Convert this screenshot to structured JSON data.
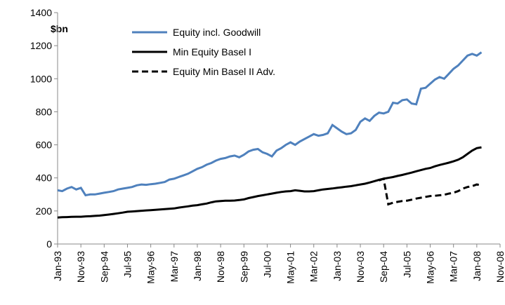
{
  "chart_data": {
    "type": "line",
    "y_label": "$bn",
    "categories": [
      "Jan-93",
      null,
      null,
      null,
      null,
      "Nov-93",
      null,
      null,
      null,
      null,
      "Sep-94",
      null,
      null,
      null,
      null,
      "Jul-95",
      null,
      null,
      null,
      null,
      "May-96",
      null,
      null,
      null,
      null,
      "Mar-97",
      null,
      null,
      null,
      null,
      "Jan-98",
      null,
      null,
      null,
      null,
      "Nov-98",
      null,
      null,
      null,
      null,
      "Sep-99",
      null,
      null,
      null,
      null,
      "Jul-00",
      null,
      null,
      null,
      null,
      "May-01",
      null,
      null,
      null,
      null,
      "Mar-02",
      null,
      null,
      null,
      null,
      "Jan-03",
      null,
      null,
      null,
      null,
      "Nov-03",
      null,
      null,
      null,
      null,
      "Sep-04",
      null,
      null,
      null,
      null,
      "Jul-05",
      null,
      null,
      null,
      null,
      "May-06",
      null,
      null,
      null,
      null,
      "Mar-07",
      null,
      null,
      null,
      null,
      "Jan-08",
      null,
      null,
      null,
      null,
      "Nov-08"
    ],
    "series": [
      {
        "name": "Equity incl. Goodwill",
        "color": "#4f81bd",
        "dash": false,
        "values": [
          325,
          320,
          335,
          345,
          330,
          340,
          295,
          300,
          300,
          305,
          310,
          315,
          320,
          330,
          335,
          340,
          345,
          355,
          360,
          358,
          362,
          365,
          370,
          375,
          390,
          395,
          405,
          415,
          425,
          440,
          455,
          465,
          480,
          490,
          505,
          515,
          520,
          530,
          535,
          525,
          540,
          560,
          570,
          575,
          555,
          545,
          530,
          565,
          580,
          600,
          615,
          600,
          620,
          635,
          650,
          665,
          655,
          660,
          670,
          720,
          700,
          680,
          665,
          670,
          690,
          740,
          760,
          745,
          775,
          795,
          790,
          800,
          855,
          850,
          870,
          875,
          850,
          845,
          940,
          945,
          970,
          995,
          1010,
          1000,
          1030,
          1060,
          1080,
          1110,
          1140,
          1150,
          1140,
          1160,
          null,
          null,
          null,
          null
        ]
      },
      {
        "name": "Min Equity Basel I",
        "color": "#000000",
        "dash": false,
        "values": [
          160,
          162,
          163,
          164,
          165,
          165,
          167,
          168,
          170,
          172,
          175,
          178,
          182,
          186,
          190,
          195,
          197,
          199,
          201,
          203,
          205,
          207,
          209,
          211,
          213,
          215,
          220,
          224,
          228,
          232,
          235,
          240,
          245,
          252,
          258,
          260,
          262,
          262,
          263,
          266,
          270,
          278,
          284,
          290,
          295,
          300,
          305,
          310,
          315,
          318,
          320,
          325,
          322,
          318,
          318,
          320,
          325,
          330,
          333,
          336,
          340,
          343,
          347,
          350,
          355,
          360,
          365,
          372,
          380,
          388,
          395,
          400,
          405,
          412,
          418,
          425,
          432,
          440,
          447,
          455,
          460,
          470,
          478,
          485,
          492,
          500,
          510,
          525,
          545,
          565,
          580,
          585,
          null,
          null,
          null,
          null
        ]
      },
      {
        "name": "Equity Min Basel II Adv.",
        "color": "#000000",
        "dash": true,
        "values": [
          null,
          null,
          null,
          null,
          null,
          null,
          null,
          null,
          null,
          null,
          null,
          null,
          null,
          null,
          null,
          null,
          null,
          null,
          null,
          null,
          null,
          null,
          null,
          null,
          null,
          null,
          null,
          null,
          null,
          null,
          null,
          null,
          null,
          null,
          null,
          null,
          null,
          null,
          null,
          null,
          null,
          null,
          null,
          null,
          null,
          null,
          null,
          null,
          null,
          null,
          null,
          null,
          null,
          null,
          null,
          null,
          null,
          null,
          null,
          null,
          null,
          null,
          null,
          null,
          null,
          null,
          null,
          null,
          null,
          385,
          395,
          240,
          250,
          255,
          260,
          262,
          268,
          275,
          280,
          285,
          290,
          292,
          295,
          298,
          305,
          310,
          320,
          335,
          345,
          350,
          360,
          355,
          null,
          null,
          null,
          null
        ]
      }
    ],
    "ylim": [
      0,
      1400
    ],
    "yticks": [
      0,
      200,
      400,
      600,
      800,
      1000,
      1200,
      1400
    ],
    "grid": false
  }
}
